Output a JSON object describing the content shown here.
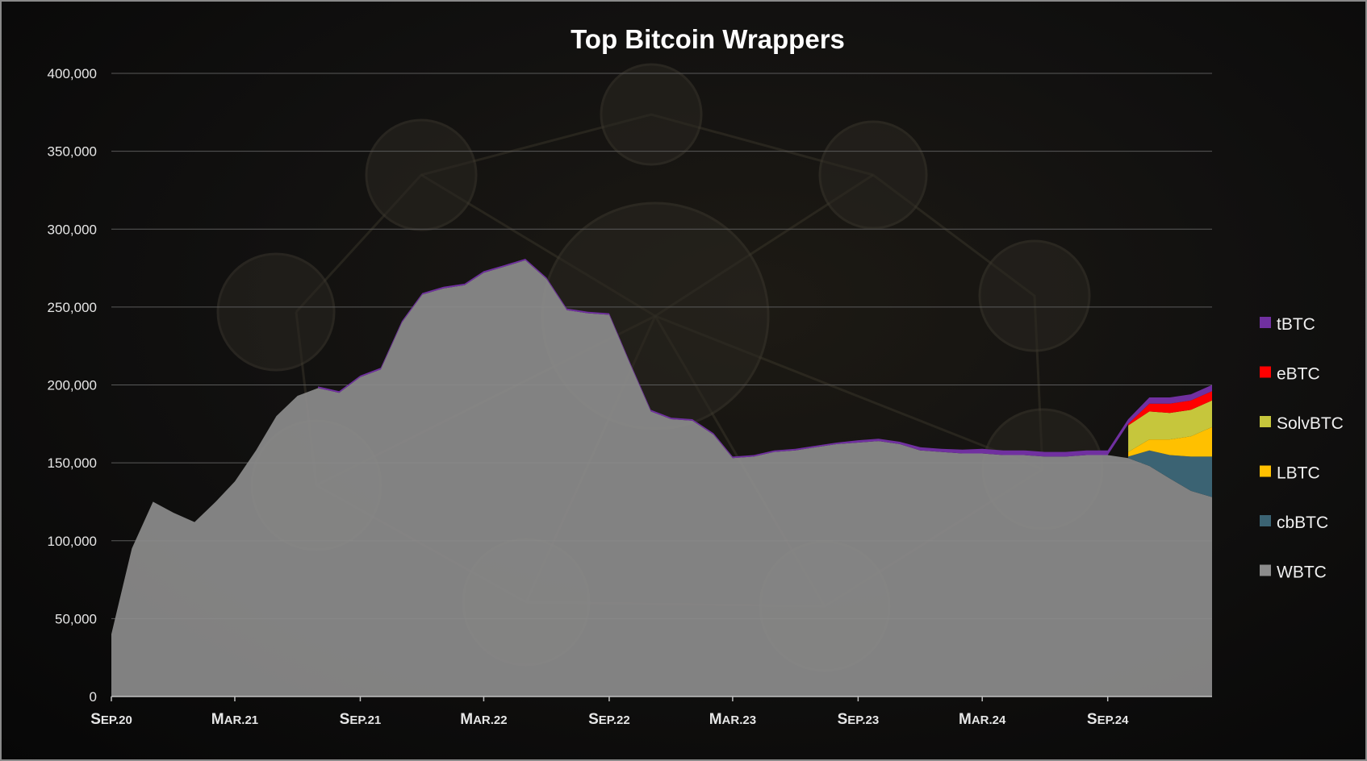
{
  "chart_data": {
    "type": "area",
    "stacked": true,
    "title": "Top Bitcoin Wrappers",
    "xlabel": "",
    "ylabel": "",
    "ylim": [
      0,
      400000
    ],
    "yticks": [
      0,
      50000,
      100000,
      150000,
      200000,
      250000,
      300000,
      350000,
      400000
    ],
    "ytick_labels": [
      "0",
      "50,000",
      "100,000",
      "150,000",
      "200,000",
      "250,000",
      "300,000",
      "350,000",
      "400,000"
    ],
    "xlim": [
      "2020-09-01",
      "2025-02-01"
    ],
    "xticks": [
      "2020-09-01",
      "2021-03-01",
      "2021-09-01",
      "2022-03-01",
      "2022-09-01",
      "2023-03-01",
      "2023-09-01",
      "2024-03-01",
      "2024-09-01"
    ],
    "xtick_labels": [
      "Sep.20",
      "Mar.21",
      "Sep.21",
      "Mar.22",
      "Sep.22",
      "Mar.23",
      "Sep.23",
      "Mar.24",
      "Sep.24"
    ],
    "grid": true,
    "legend_position": "right",
    "colors": {
      "WBTC": "#8c8c8c",
      "cbBTC": "#3b6373",
      "LBTC": "#ffc000",
      "SolvBTC": "#c6c63c",
      "eBTC": "#ff0000",
      "tBTC": "#7030a0"
    },
    "legend_order": [
      "tBTC",
      "eBTC",
      "SolvBTC",
      "LBTC",
      "cbBTC",
      "WBTC"
    ],
    "x": [
      "2020-09-01",
      "2020-10-01",
      "2020-11-01",
      "2020-12-01",
      "2021-01-01",
      "2021-02-01",
      "2021-03-01",
      "2021-04-01",
      "2021-05-01",
      "2021-06-01",
      "2021-07-01",
      "2021-08-01",
      "2021-09-01",
      "2021-10-01",
      "2021-11-01",
      "2021-12-01",
      "2022-01-01",
      "2022-02-01",
      "2022-03-01",
      "2022-04-01",
      "2022-05-01",
      "2022-06-01",
      "2022-07-01",
      "2022-08-01",
      "2022-09-01",
      "2022-10-01",
      "2022-11-01",
      "2022-12-01",
      "2023-01-01",
      "2023-02-01",
      "2023-03-01",
      "2023-04-01",
      "2023-05-01",
      "2023-06-01",
      "2023-07-01",
      "2023-08-01",
      "2023-09-01",
      "2023-10-01",
      "2023-11-01",
      "2023-12-01",
      "2024-01-01",
      "2024-02-01",
      "2024-03-01",
      "2024-04-01",
      "2024-05-01",
      "2024-06-01",
      "2024-07-01",
      "2024-08-01",
      "2024-09-01",
      "2024-10-01",
      "2024-11-01",
      "2024-12-01",
      "2025-01-01",
      "2025-02-01"
    ],
    "series": [
      {
        "name": "WBTC",
        "values": [
          40000,
          95000,
          125000,
          118000,
          112000,
          125000,
          138000,
          158000,
          180000,
          193000,
          198000,
          195000,
          205000,
          210000,
          240000,
          258000,
          262000,
          264000,
          272000,
          276000,
          280000,
          268000,
          248000,
          246000,
          245000,
          214000,
          183000,
          178000,
          177000,
          168000,
          153000,
          154000,
          157000,
          158000,
          160000,
          162000,
          163000,
          164000,
          162000,
          158000,
          157000,
          156000,
          156000,
          155000,
          155000,
          154000,
          154000,
          155000,
          155000,
          153000,
          148000,
          140000,
          132000,
          128000
        ]
      },
      {
        "name": "cbBTC",
        "values": [
          0,
          0,
          0,
          0,
          0,
          0,
          0,
          0,
          0,
          0,
          0,
          0,
          0,
          0,
          0,
          0,
          0,
          0,
          0,
          0,
          0,
          0,
          0,
          0,
          0,
          0,
          0,
          0,
          0,
          0,
          0,
          0,
          0,
          0,
          0,
          0,
          0,
          0,
          0,
          0,
          0,
          0,
          0,
          0,
          0,
          0,
          0,
          0,
          0,
          1000,
          10000,
          15000,
          22000,
          26000
        ]
      },
      {
        "name": "LBTC",
        "values": [
          0,
          0,
          0,
          0,
          0,
          0,
          0,
          0,
          0,
          0,
          0,
          0,
          0,
          0,
          0,
          0,
          0,
          0,
          0,
          0,
          0,
          0,
          0,
          0,
          0,
          0,
          0,
          0,
          0,
          0,
          0,
          0,
          0,
          0,
          0,
          0,
          0,
          0,
          0,
          0,
          0,
          0,
          0,
          0,
          0,
          0,
          0,
          0,
          0,
          3000,
          7000,
          10000,
          13000,
          19000
        ]
      },
      {
        "name": "SolvBTC",
        "values": [
          0,
          0,
          0,
          0,
          0,
          0,
          0,
          0,
          0,
          0,
          0,
          0,
          0,
          0,
          0,
          0,
          0,
          0,
          0,
          0,
          0,
          0,
          0,
          0,
          0,
          0,
          0,
          0,
          0,
          0,
          0,
          0,
          0,
          0,
          0,
          0,
          0,
          0,
          0,
          0,
          0,
          0,
          0,
          0,
          0,
          0,
          0,
          0,
          0,
          17000,
          18000,
          17000,
          17000,
          17000
        ]
      },
      {
        "name": "eBTC",
        "values": [
          0,
          0,
          0,
          0,
          0,
          0,
          0,
          0,
          0,
          0,
          0,
          0,
          0,
          0,
          0,
          0,
          0,
          0,
          0,
          0,
          0,
          0,
          0,
          0,
          0,
          0,
          0,
          0,
          0,
          0,
          0,
          0,
          0,
          0,
          0,
          0,
          0,
          0,
          0,
          0,
          0,
          0,
          0,
          0,
          0,
          0,
          0,
          0,
          0,
          1000,
          5000,
          6000,
          6000,
          6000
        ]
      },
      {
        "name": "tBTC",
        "values": [
          0,
          0,
          0,
          0,
          0,
          0,
          0,
          0,
          0,
          0,
          1000,
          1000,
          1000,
          1000,
          1000,
          1000,
          1000,
          1000,
          1000,
          1000,
          1000,
          1000,
          1000,
          1000,
          1000,
          1000,
          1000,
          1000,
          1000,
          1000,
          1000,
          1000,
          1000,
          1000,
          1000,
          1000,
          1500,
          1500,
          1500,
          2000,
          2000,
          2500,
          3000,
          3000,
          3000,
          3000,
          3000,
          3000,
          3000,
          3000,
          4000,
          4000,
          4000,
          4000
        ]
      }
    ]
  }
}
